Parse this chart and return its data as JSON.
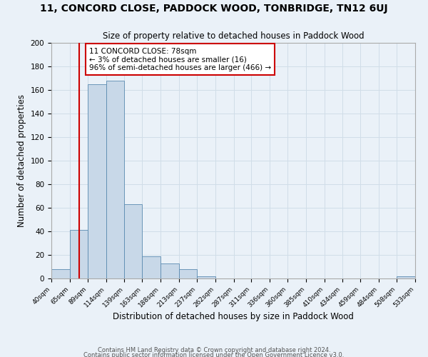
{
  "title1": "11, CONCORD CLOSE, PADDOCK WOOD, TONBRIDGE, TN12 6UJ",
  "title2": "Size of property relative to detached houses in Paddock Wood",
  "xlabel": "Distribution of detached houses by size in Paddock Wood",
  "ylabel": "Number of detached properties",
  "bin_edges": [
    40,
    65,
    89,
    114,
    139,
    163,
    188,
    213,
    237,
    262,
    287,
    311,
    336,
    360,
    385,
    410,
    434,
    459,
    484,
    508,
    533
  ],
  "bar_heights": [
    8,
    41,
    165,
    168,
    63,
    19,
    13,
    8,
    2,
    0,
    0,
    0,
    0,
    0,
    0,
    0,
    0,
    0,
    0,
    2
  ],
  "bar_color": "#c8d8e8",
  "bar_edge_color": "#5a8ab0",
  "property_size": 78,
  "vline_color": "#cc0000",
  "annotation_line1": "11 CONCORD CLOSE: 78sqm",
  "annotation_line2": "← 3% of detached houses are smaller (16)",
  "annotation_line3": "96% of semi-detached houses are larger (466) →",
  "annotation_box_color": "#ffffff",
  "annotation_box_edge": "#cc0000",
  "grid_color": "#d0dde8",
  "ylim": [
    0,
    200
  ],
  "yticks": [
    0,
    20,
    40,
    60,
    80,
    100,
    120,
    140,
    160,
    180,
    200
  ],
  "tick_labels": [
    "40sqm",
    "65sqm",
    "89sqm",
    "114sqm",
    "139sqm",
    "163sqm",
    "188sqm",
    "213sqm",
    "237sqm",
    "262sqm",
    "287sqm",
    "311sqm",
    "336sqm",
    "360sqm",
    "385sqm",
    "410sqm",
    "434sqm",
    "459sqm",
    "484sqm",
    "508sqm",
    "533sqm"
  ],
  "footer1": "Contains HM Land Registry data © Crown copyright and database right 2024.",
  "footer2": "Contains public sector information licensed under the Open Government Licence v3.0.",
  "bg_color": "#eaf1f8"
}
